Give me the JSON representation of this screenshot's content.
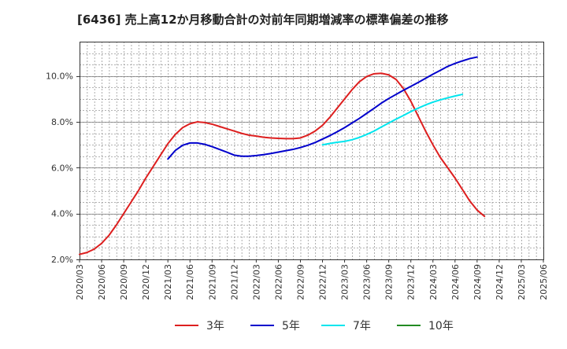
{
  "chart_data": {
    "type": "line",
    "title": "[6436]  売上高12か月移動合計の対前年同期増減率の標準偏差の推移",
    "xlabel": "",
    "ylabel": "",
    "x_ticks": [
      "2020/03",
      "2020/06",
      "2020/09",
      "2020/12",
      "2021/03",
      "2021/06",
      "2021/09",
      "2021/12",
      "2022/03",
      "2022/06",
      "2022/09",
      "2022/12",
      "2023/03",
      "2023/06",
      "2023/09",
      "2023/12",
      "2024/03",
      "2024/06",
      "2024/09",
      "2024/12",
      "2025/03",
      "2025/06"
    ],
    "y_ticks": [
      "2.0%",
      "4.0%",
      "6.0%",
      "8.0%",
      "10.0%"
    ],
    "y_tick_values": [
      2,
      4,
      6,
      8,
      10
    ],
    "ylim": [
      2.0,
      11.5
    ],
    "grid": true,
    "legend_position": "bottom",
    "series": [
      {
        "name": "3年",
        "color": "#dd1f1f",
        "points": [
          [
            "2020/03",
            2.22
          ],
          [
            "2020/04",
            2.3
          ],
          [
            "2020/05",
            2.45
          ],
          [
            "2020/06",
            2.7
          ],
          [
            "2020/07",
            3.05
          ],
          [
            "2020/08",
            3.5
          ],
          [
            "2020/09",
            4.0
          ],
          [
            "2020/10",
            4.5
          ],
          [
            "2020/11",
            5.0
          ],
          [
            "2020/12",
            5.55
          ],
          [
            "2021/01",
            6.05
          ],
          [
            "2021/02",
            6.55
          ],
          [
            "2021/03",
            7.05
          ],
          [
            "2021/04",
            7.45
          ],
          [
            "2021/05",
            7.75
          ],
          [
            "2021/06",
            7.92
          ],
          [
            "2021/07",
            8.0
          ],
          [
            "2021/08",
            7.97
          ],
          [
            "2021/09",
            7.9
          ],
          [
            "2021/10",
            7.8
          ],
          [
            "2021/11",
            7.7
          ],
          [
            "2021/12",
            7.6
          ],
          [
            "2022/01",
            7.5
          ],
          [
            "2022/02",
            7.42
          ],
          [
            "2022/03",
            7.38
          ],
          [
            "2022/04",
            7.33
          ],
          [
            "2022/05",
            7.3
          ],
          [
            "2022/06",
            7.28
          ],
          [
            "2022/07",
            7.27
          ],
          [
            "2022/08",
            7.27
          ],
          [
            "2022/09",
            7.3
          ],
          [
            "2022/10",
            7.42
          ],
          [
            "2022/11",
            7.6
          ],
          [
            "2022/12",
            7.85
          ],
          [
            "2023/01",
            8.2
          ],
          [
            "2023/02",
            8.6
          ],
          [
            "2023/03",
            9.0
          ],
          [
            "2023/04",
            9.4
          ],
          [
            "2023/05",
            9.75
          ],
          [
            "2023/06",
            9.98
          ],
          [
            "2023/07",
            10.1
          ],
          [
            "2023/08",
            10.12
          ],
          [
            "2023/09",
            10.05
          ],
          [
            "2023/10",
            9.85
          ],
          [
            "2023/11",
            9.45
          ],
          [
            "2023/12",
            8.9
          ],
          [
            "2024/01",
            8.25
          ],
          [
            "2024/02",
            7.6
          ],
          [
            "2024/03",
            7.0
          ],
          [
            "2024/04",
            6.45
          ],
          [
            "2024/05",
            6.0
          ],
          [
            "2024/06",
            5.55
          ],
          [
            "2024/07",
            5.05
          ],
          [
            "2024/08",
            4.55
          ],
          [
            "2024/09",
            4.15
          ],
          [
            "2024/10",
            3.88
          ]
        ]
      },
      {
        "name": "5年",
        "color": "#0000cc",
        "points": [
          [
            "2021/03",
            6.38
          ],
          [
            "2021/04",
            6.75
          ],
          [
            "2021/05",
            6.98
          ],
          [
            "2021/06",
            7.08
          ],
          [
            "2021/07",
            7.08
          ],
          [
            "2021/08",
            7.02
          ],
          [
            "2021/09",
            6.92
          ],
          [
            "2021/10",
            6.8
          ],
          [
            "2021/11",
            6.68
          ],
          [
            "2021/12",
            6.55
          ],
          [
            "2022/01",
            6.5
          ],
          [
            "2022/02",
            6.5
          ],
          [
            "2022/03",
            6.53
          ],
          [
            "2022/04",
            6.57
          ],
          [
            "2022/05",
            6.62
          ],
          [
            "2022/06",
            6.68
          ],
          [
            "2022/07",
            6.74
          ],
          [
            "2022/08",
            6.8
          ],
          [
            "2022/09",
            6.88
          ],
          [
            "2022/10",
            6.98
          ],
          [
            "2022/11",
            7.1
          ],
          [
            "2022/12",
            7.25
          ],
          [
            "2023/01",
            7.4
          ],
          [
            "2023/02",
            7.57
          ],
          [
            "2023/03",
            7.75
          ],
          [
            "2023/04",
            7.95
          ],
          [
            "2023/05",
            8.15
          ],
          [
            "2023/06",
            8.37
          ],
          [
            "2023/07",
            8.59
          ],
          [
            "2023/08",
            8.82
          ],
          [
            "2023/09",
            9.02
          ],
          [
            "2023/10",
            9.2
          ],
          [
            "2023/11",
            9.38
          ],
          [
            "2023/12",
            9.55
          ],
          [
            "2024/01",
            9.72
          ],
          [
            "2024/02",
            9.9
          ],
          [
            "2024/03",
            10.08
          ],
          [
            "2024/04",
            10.25
          ],
          [
            "2024/05",
            10.42
          ],
          [
            "2024/06",
            10.55
          ],
          [
            "2024/07",
            10.66
          ],
          [
            "2024/08",
            10.76
          ],
          [
            "2024/09",
            10.83
          ]
        ]
      },
      {
        "name": "7年",
        "color": "#00e5ee",
        "points": [
          [
            "2022/12",
            7.0
          ],
          [
            "2023/01",
            7.06
          ],
          [
            "2023/02",
            7.11
          ],
          [
            "2023/03",
            7.15
          ],
          [
            "2023/04",
            7.22
          ],
          [
            "2023/05",
            7.32
          ],
          [
            "2023/06",
            7.45
          ],
          [
            "2023/07",
            7.6
          ],
          [
            "2023/08",
            7.78
          ],
          [
            "2023/09",
            7.95
          ],
          [
            "2023/10",
            8.12
          ],
          [
            "2023/11",
            8.28
          ],
          [
            "2023/12",
            8.45
          ],
          [
            "2024/01",
            8.6
          ],
          [
            "2024/02",
            8.74
          ],
          [
            "2024/03",
            8.86
          ],
          [
            "2024/04",
            8.96
          ],
          [
            "2024/05",
            9.05
          ],
          [
            "2024/06",
            9.13
          ],
          [
            "2024/07",
            9.2
          ]
        ]
      },
      {
        "name": "10年",
        "color": "#228b22",
        "points": []
      }
    ]
  }
}
